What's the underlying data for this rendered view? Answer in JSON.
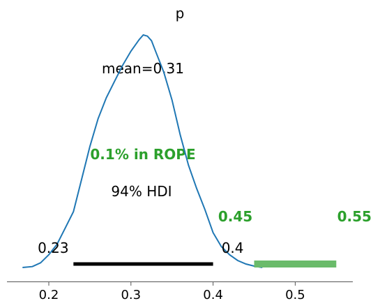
{
  "chart_data": {
    "type": "area",
    "title": "p",
    "xlabel": "",
    "ylabel": "",
    "xlim": [
      0.15,
      0.57
    ],
    "x_ticks": [
      0.2,
      0.3,
      0.4,
      0.5
    ],
    "x_tick_labels": [
      "0.2",
      "0.3",
      "0.4",
      "0.5"
    ],
    "grid": false,
    "legend": "none",
    "density": {
      "x": [
        0.168,
        0.18,
        0.19,
        0.2,
        0.21,
        0.22,
        0.23,
        0.24,
        0.25,
        0.26,
        0.27,
        0.28,
        0.29,
        0.3,
        0.31,
        0.315,
        0.32,
        0.325,
        0.33,
        0.34,
        0.35,
        0.36,
        0.37,
        0.38,
        0.39,
        0.4,
        0.41,
        0.42,
        0.43,
        0.44,
        0.45,
        0.46
      ],
      "y": [
        0.0,
        0.004,
        0.02,
        0.055,
        0.1,
        0.17,
        0.24,
        0.38,
        0.52,
        0.64,
        0.73,
        0.8,
        0.87,
        0.93,
        0.98,
        1.0,
        0.995,
        0.975,
        0.93,
        0.84,
        0.72,
        0.57,
        0.44,
        0.34,
        0.25,
        0.15,
        0.09,
        0.055,
        0.03,
        0.015,
        0.006,
        0.0
      ]
    },
    "mean": {
      "label": "mean=0.31",
      "value": 0.31
    },
    "hdi": {
      "label": "94% HDI",
      "low": 0.23,
      "high": 0.4,
      "low_label": "0.23",
      "high_label": "0.4"
    },
    "rope": {
      "label": "0.1% in ROPE",
      "low": 0.45,
      "high": 0.55,
      "low_label": "0.45",
      "high_label": "0.55"
    },
    "colors": {
      "density": "#1f77b4",
      "rope_text": "#2ca02c",
      "rope_bar": "#6abb6a",
      "hdi_bar": "#000000",
      "axis": "#555555"
    }
  }
}
